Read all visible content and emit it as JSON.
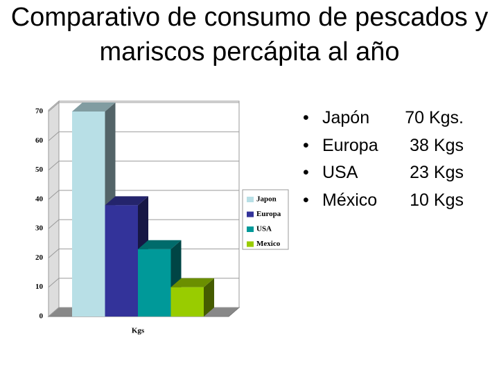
{
  "chart_data": {
    "type": "bar3d",
    "title": "Comparativo de consumo de pescados y mariscos percápita al año",
    "categories": [
      "Kgs"
    ],
    "series": [
      {
        "name": "Japon",
        "color": "#b8dfe6",
        "values": [
          70
        ]
      },
      {
        "name": "Europa",
        "color": "#33339a",
        "values": [
          38
        ]
      },
      {
        "name": "USA",
        "color": "#009999",
        "values": [
          23
        ]
      },
      {
        "name": "Mexico",
        "color": "#99cc00",
        "values": [
          10
        ]
      }
    ],
    "ylim": [
      0,
      70
    ],
    "yticks": [
      0,
      10,
      20,
      30,
      40,
      50,
      60,
      70
    ],
    "grid": true,
    "legend": "right"
  },
  "bullets": [
    {
      "label": "Japón",
      "value": "70 Kgs."
    },
    {
      "label": "Europa",
      "value": "38 Kgs"
    },
    {
      "label": "USA",
      "value": "23 Kgs"
    },
    {
      "label": "México",
      "value": "10 Kgs"
    }
  ]
}
